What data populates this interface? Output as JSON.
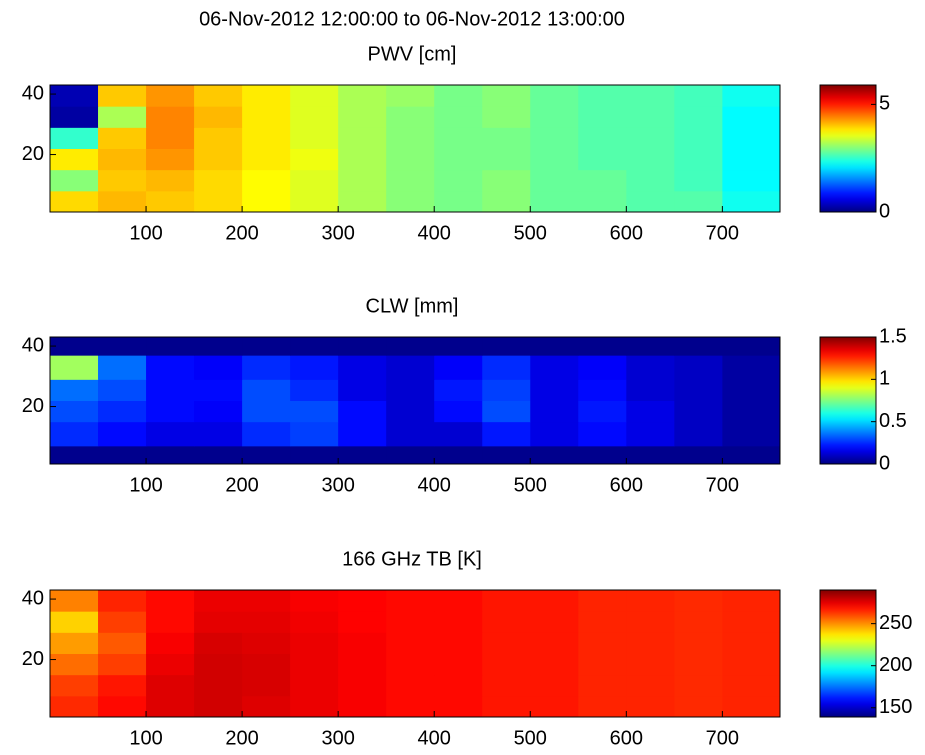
{
  "title": "06-Nov-2012 12:00:00 to 06-Nov-2012 13:00:00",
  "chart_data": [
    {
      "type": "heatmap",
      "title": "PWV [cm]",
      "colormap": "jet",
      "xbins": [
        0,
        50,
        100,
        150,
        200,
        250,
        300,
        350,
        400,
        450,
        500,
        550,
        600,
        650,
        700,
        760
      ],
      "ybins": [
        1,
        8,
        15,
        22,
        29,
        36,
        43
      ],
      "xlim": [
        0,
        760
      ],
      "ylim": [
        43,
        1
      ],
      "xticks": [
        100,
        200,
        300,
        400,
        500,
        600,
        700
      ],
      "yticks": [
        20,
        40
      ],
      "clim": [
        0,
        5.9
      ],
      "cticks": [
        0,
        5
      ],
      "values": [
        [
          3.9,
          4.1,
          4.0,
          3.9,
          3.7,
          3.5,
          3.2,
          3.0,
          2.9,
          3.0,
          2.8,
          2.8,
          2.7,
          2.7,
          2.3
        ],
        [
          3.0,
          4.0,
          4.1,
          3.9,
          3.7,
          3.5,
          3.2,
          3.0,
          2.9,
          3.0,
          2.8,
          2.8,
          2.7,
          2.6,
          2.2
        ],
        [
          3.8,
          4.1,
          4.3,
          4.0,
          3.8,
          3.6,
          3.2,
          3.0,
          2.9,
          2.9,
          2.8,
          2.7,
          2.7,
          2.6,
          2.2
        ],
        [
          2.5,
          4.0,
          4.4,
          4.0,
          3.8,
          3.5,
          3.2,
          3.0,
          2.9,
          2.9,
          2.8,
          2.7,
          2.7,
          2.6,
          2.2
        ],
        [
          0.2,
          3.2,
          4.4,
          4.1,
          3.8,
          3.5,
          3.2,
          3.0,
          2.9,
          3.0,
          2.8,
          2.7,
          2.7,
          2.6,
          2.2
        ],
        [
          0.3,
          4.0,
          4.3,
          4.0,
          3.8,
          3.5,
          3.2,
          3.1,
          2.9,
          3.0,
          2.8,
          2.7,
          2.7,
          2.6,
          2.3
        ]
      ]
    },
    {
      "type": "heatmap",
      "title": "CLW [mm]",
      "colormap": "jet",
      "xbins": [
        0,
        50,
        100,
        150,
        200,
        250,
        300,
        350,
        400,
        450,
        500,
        550,
        600,
        650,
        700,
        760
      ],
      "ybins": [
        1,
        7,
        15,
        22,
        29,
        37,
        43
      ],
      "xlim": [
        0,
        760
      ],
      "ylim": [
        43,
        1
      ],
      "xticks": [
        100,
        200,
        300,
        400,
        500,
        600,
        700
      ],
      "yticks": [
        20,
        40
      ],
      "clim": [
        0,
        1.5
      ],
      "cticks": [
        0,
        0.5,
        1,
        1.5
      ],
      "values": [
        [
          0.02,
          0.02,
          0.02,
          0.02,
          0.02,
          0.02,
          0.02,
          0.02,
          0.02,
          0.02,
          0.02,
          0.02,
          0.02,
          0.02,
          0.02
        ],
        [
          0.25,
          0.2,
          0.15,
          0.15,
          0.25,
          0.28,
          0.2,
          0.12,
          0.12,
          0.22,
          0.15,
          0.2,
          0.15,
          0.1,
          0.05
        ],
        [
          0.3,
          0.25,
          0.2,
          0.18,
          0.3,
          0.3,
          0.2,
          0.12,
          0.2,
          0.3,
          0.15,
          0.22,
          0.15,
          0.1,
          0.05
        ],
        [
          0.35,
          0.3,
          0.2,
          0.2,
          0.3,
          0.25,
          0.15,
          0.12,
          0.22,
          0.28,
          0.15,
          0.2,
          0.12,
          0.1,
          0.05
        ],
        [
          0.8,
          0.35,
          0.2,
          0.18,
          0.25,
          0.22,
          0.15,
          0.12,
          0.18,
          0.25,
          0.15,
          0.18,
          0.12,
          0.1,
          0.05
        ],
        [
          0.02,
          0.02,
          0.02,
          0.02,
          0.02,
          0.02,
          0.02,
          0.02,
          0.02,
          0.02,
          0.02,
          0.02,
          0.02,
          0.02,
          0.02
        ]
      ]
    },
    {
      "type": "heatmap",
      "title": "166 GHz TB [K]",
      "colormap": "jet",
      "xbins": [
        0,
        50,
        100,
        150,
        200,
        250,
        300,
        350,
        400,
        450,
        500,
        550,
        600,
        650,
        700,
        760
      ],
      "ybins": [
        1,
        8,
        15,
        22,
        29,
        36,
        43
      ],
      "xlim": [
        0,
        760
      ],
      "ylim": [
        43,
        1
      ],
      "xticks": [
        100,
        200,
        300,
        400,
        500,
        600,
        700
      ],
      "yticks": [
        20,
        40
      ],
      "clim": [
        139,
        290
      ],
      "cticks": [
        150,
        200,
        250
      ],
      "values": [
        [
          265,
          270,
          276,
          278,
          276,
          274,
          272,
          270,
          270,
          268,
          268,
          266,
          266,
          265,
          266
        ],
        [
          262,
          268,
          276,
          278,
          277,
          274,
          272,
          270,
          270,
          268,
          268,
          266,
          266,
          265,
          266
        ],
        [
          255,
          262,
          274,
          278,
          277,
          274,
          272,
          270,
          270,
          268,
          268,
          266,
          266,
          265,
          266
        ],
        [
          248,
          258,
          272,
          277,
          276,
          274,
          272,
          270,
          270,
          268,
          268,
          266,
          266,
          265,
          266
        ],
        [
          240,
          262,
          270,
          275,
          275,
          273,
          271,
          270,
          270,
          268,
          268,
          266,
          266,
          265,
          266
        ],
        [
          252,
          266,
          270,
          274,
          274,
          272,
          271,
          270,
          270,
          268,
          268,
          266,
          266,
          265,
          266
        ]
      ]
    }
  ]
}
